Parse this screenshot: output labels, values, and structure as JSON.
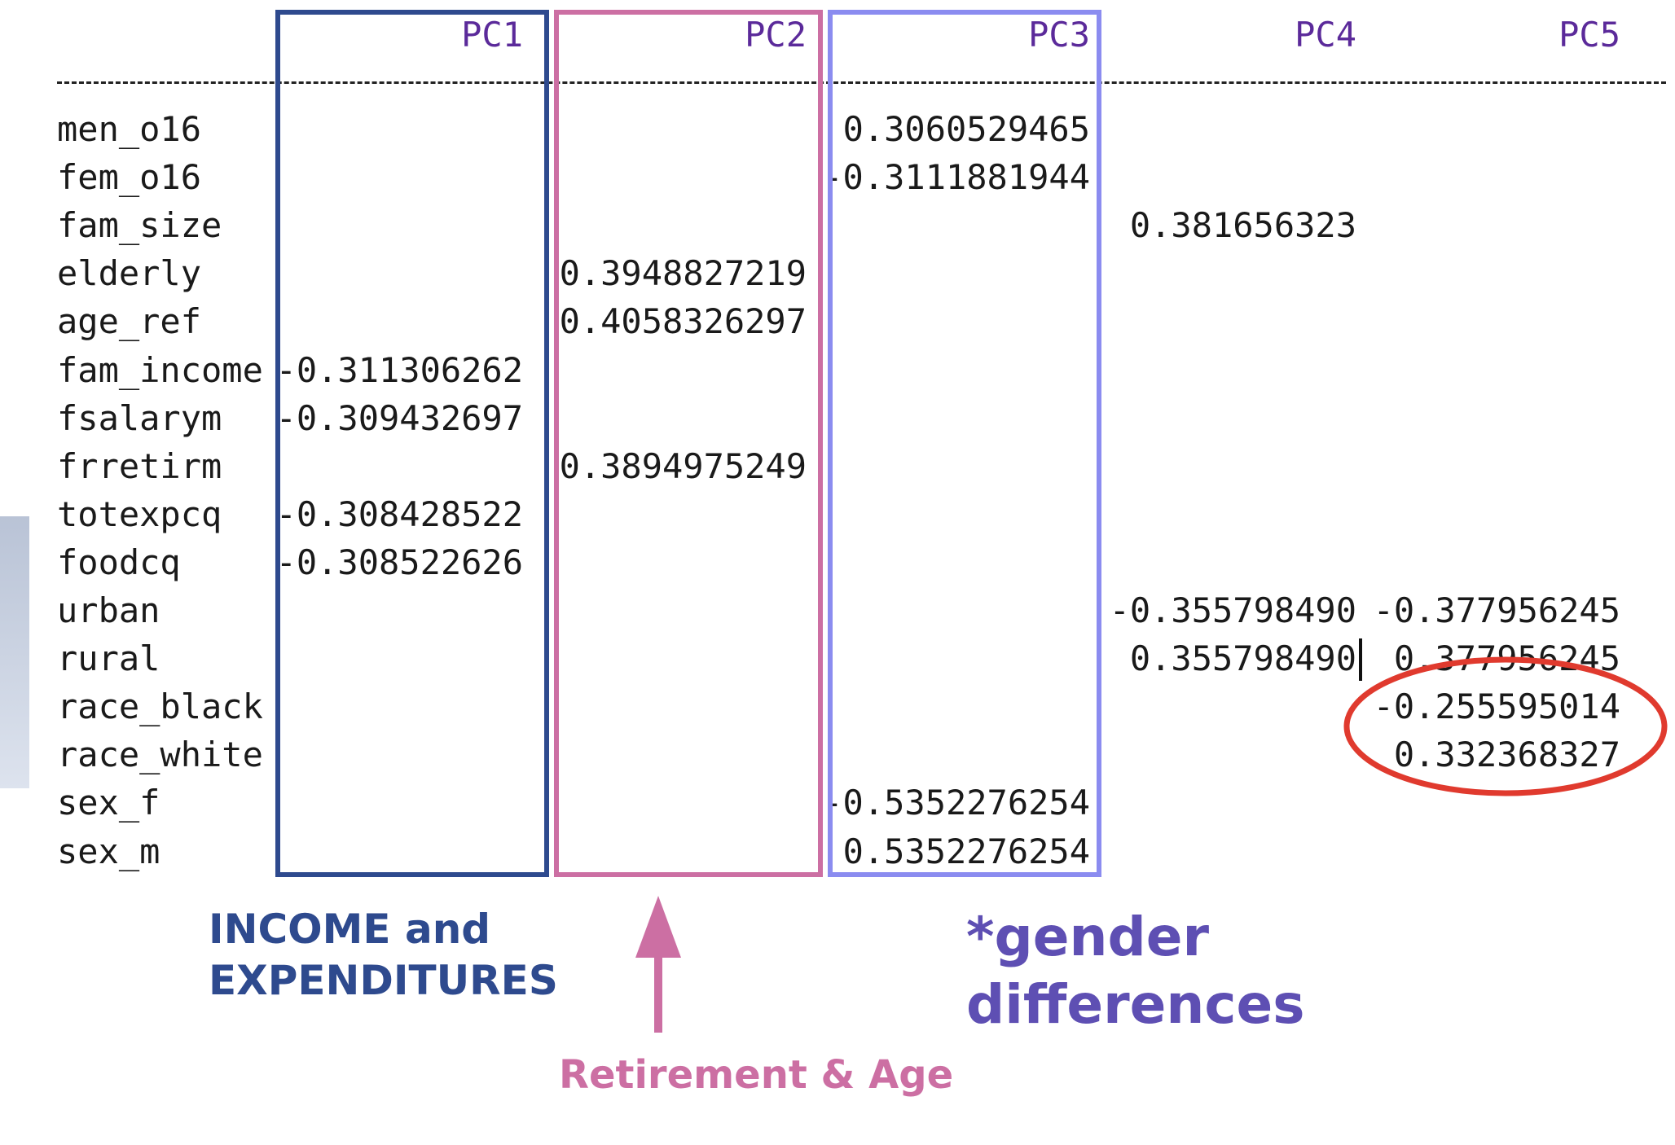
{
  "headers": [
    "PC1",
    "PC2",
    "PC3",
    "PC4",
    "PC5"
  ],
  "rows": [
    {
      "name": "men_o16",
      "values": [
        "",
        "",
        "0.3060529465",
        "",
        ""
      ]
    },
    {
      "name": "fem_o16",
      "values": [
        "",
        "",
        "-0.3111881944",
        "",
        ""
      ]
    },
    {
      "name": "fam_size",
      "values": [
        "",
        "",
        "",
        "0.381656323",
        ""
      ]
    },
    {
      "name": "elderly",
      "values": [
        "",
        "0.3948827219",
        "",
        "",
        ""
      ]
    },
    {
      "name": "age_ref",
      "values": [
        "",
        "0.4058326297",
        "",
        "",
        ""
      ]
    },
    {
      "name": "fam_income",
      "values": [
        "-0.311306262",
        "",
        "",
        "",
        ""
      ]
    },
    {
      "name": "fsalarym",
      "values": [
        "-0.309432697",
        "",
        "",
        "",
        ""
      ]
    },
    {
      "name": "frretirm",
      "values": [
        "",
        "0.3894975249",
        "",
        "",
        ""
      ]
    },
    {
      "name": "totexpcq",
      "values": [
        "-0.308428522",
        "",
        "",
        "",
        ""
      ]
    },
    {
      "name": "foodcq",
      "values": [
        "-0.308522626",
        "",
        "",
        "",
        ""
      ]
    },
    {
      "name": "urban",
      "values": [
        "",
        "",
        "",
        "-0.355798490",
        "-0.377956245"
      ]
    },
    {
      "name": "rural",
      "values": [
        "",
        "",
        "",
        "0.355798490",
        "0.377956245"
      ]
    },
    {
      "name": "race_black",
      "values": [
        "",
        "",
        "",
        "",
        "-0.255595014"
      ]
    },
    {
      "name": "race_white",
      "values": [
        "",
        "",
        "",
        "",
        "0.332368327"
      ]
    },
    {
      "name": "sex_f",
      "values": [
        "",
        "",
        "-0.5352276254",
        "",
        ""
      ]
    },
    {
      "name": "sex_m",
      "values": [
        "",
        "",
        "0.5352276254",
        "",
        ""
      ]
    }
  ],
  "annotations": {
    "income_line1": "INCOME and",
    "income_line2": "EXPENDITURES",
    "retirement": "Retirement & Age",
    "gender_line1": "*gender",
    "gender_line2": "differences"
  },
  "colors": {
    "pc1_box": "#2e4a8e",
    "pc2_box": "#cc6fa3",
    "pc3_box": "#8b8cf0",
    "income_text": "#2e4a8e",
    "retirement_text": "#cc6fa3",
    "gender_text": "#5e4fb3",
    "circle": "#e03a2e",
    "header_text": "#5b2a9a"
  }
}
